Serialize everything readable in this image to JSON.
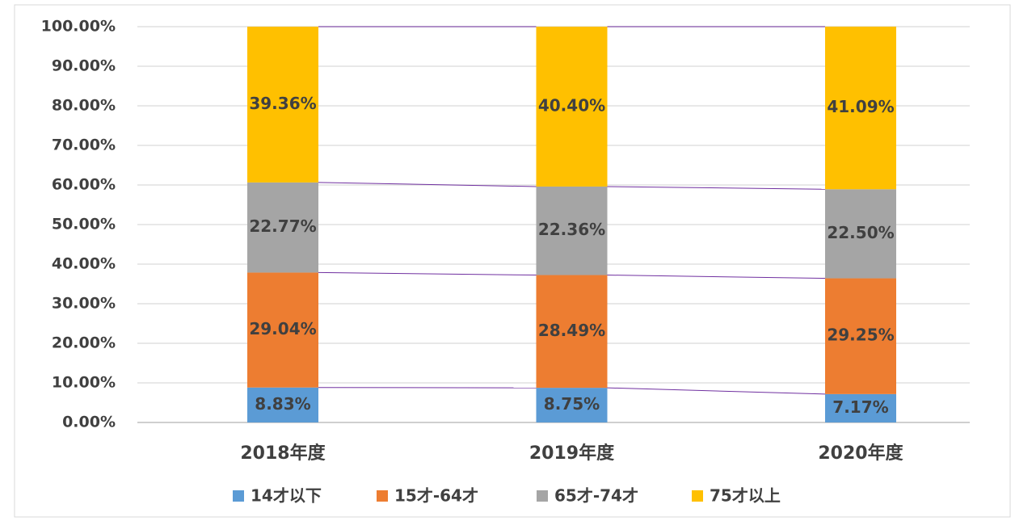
{
  "chart_data": {
    "type": "stacked_bar",
    "categories": [
      "2018年度",
      "2019年度",
      "2020年度"
    ],
    "series": [
      {
        "name": "14才以下",
        "color": "#5b9bd5",
        "values": [
          8.83,
          8.75,
          7.17
        ],
        "value_labels": [
          "8.83%",
          "8.75%",
          "7.17%"
        ]
      },
      {
        "name": "15才-64才",
        "color": "#ed7d31",
        "values": [
          29.04,
          28.49,
          29.25
        ],
        "value_labels": [
          "29.04%",
          "28.49%",
          "29.25%"
        ]
      },
      {
        "name": "65才-74才",
        "color": "#a5a5a5",
        "values": [
          22.77,
          22.36,
          22.5
        ],
        "value_labels": [
          "22.77%",
          "22.36%",
          "22.50%"
        ]
      },
      {
        "name": "75才以上",
        "color": "#ffc000",
        "values": [
          39.36,
          40.4,
          41.09
        ],
        "value_labels": [
          "39.36%",
          "40.40%",
          "41.09%"
        ]
      }
    ],
    "ylim": [
      0,
      100
    ],
    "yticks": [
      {
        "value": 0,
        "label": "0.00%"
      },
      {
        "value": 10,
        "label": "10.00%"
      },
      {
        "value": 20,
        "label": "20.00%"
      },
      {
        "value": 30,
        "label": "30.00%"
      },
      {
        "value": 40,
        "label": "40.00%"
      },
      {
        "value": 50,
        "label": "50.00%"
      },
      {
        "value": 60,
        "label": "60.00%"
      },
      {
        "value": 70,
        "label": "70.00%"
      },
      {
        "value": 80,
        "label": "80.00%"
      },
      {
        "value": 90,
        "label": "90.00%"
      },
      {
        "value": 100,
        "label": "100.00%"
      }
    ],
    "grid": true,
    "legend": "bottom"
  }
}
